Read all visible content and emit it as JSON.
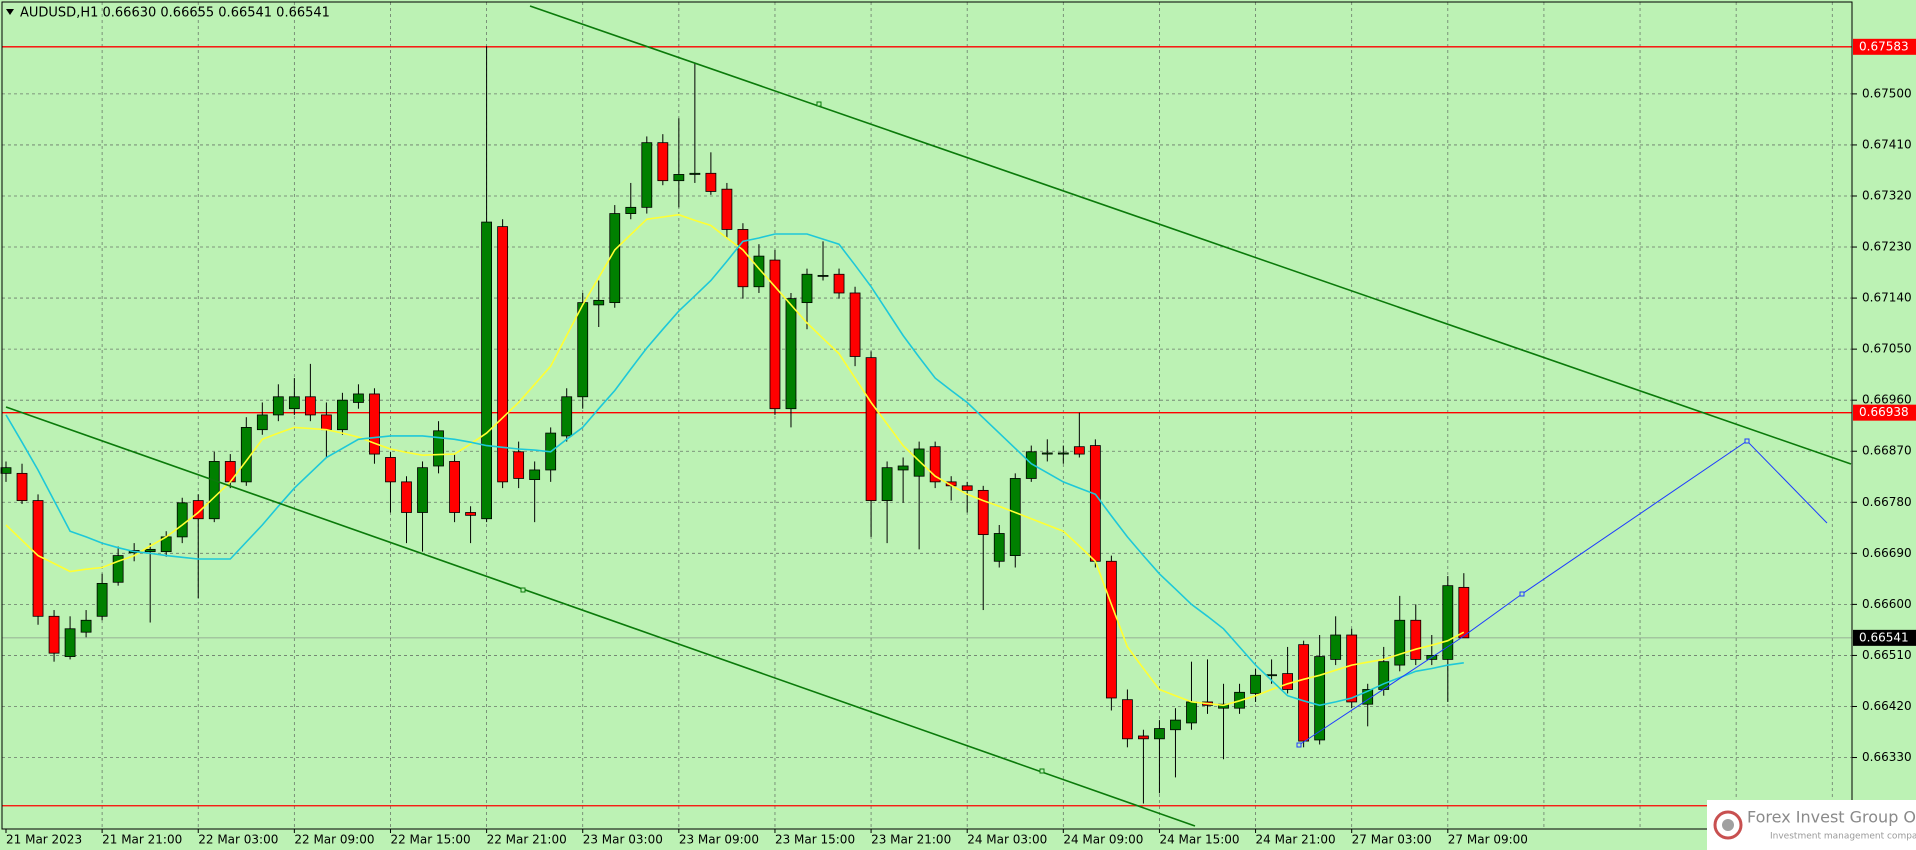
{
  "chart_data": {
    "type": "candlestick",
    "title": "AUDUSD,H1  0.66630 0.66655 0.66541 0.66541",
    "categories": [
      "21 Mar 2023",
      null,
      null,
      null,
      null,
      null,
      "21 Mar 21:00",
      null,
      null,
      null,
      null,
      null,
      "22 Mar 03:00",
      null,
      null,
      null,
      null,
      null,
      "22 Mar 09:00",
      null,
      null,
      null,
      null,
      null,
      "22 Mar 15:00",
      null,
      null,
      null,
      null,
      null,
      "22 Mar 21:00",
      null,
      null,
      null,
      null,
      null,
      "23 Mar 03:00",
      null,
      null,
      null,
      null,
      null,
      "23 Mar 09:00",
      null,
      null,
      null,
      null,
      null,
      "23 Mar 15:00",
      null,
      null,
      null,
      null,
      null,
      "23 Mar 21:00",
      null,
      null,
      null,
      null,
      null,
      "24 Mar 03:00",
      null,
      null,
      null,
      null,
      null,
      "24 Mar 09:00",
      null,
      null,
      null,
      null,
      null,
      "24 Mar 15:00",
      null,
      null,
      null,
      null,
      null,
      "24 Mar 21:00",
      null,
      null,
      null,
      null,
      null,
      "27 Mar 03:00",
      null,
      null,
      null,
      null,
      null,
      "27 Mar 09:00",
      null
    ],
    "open": [
      0.66831,
      0.66831,
      0.66783,
      0.66579,
      0.66508,
      0.66551,
      0.66579,
      0.66639,
      0.66691,
      0.66693,
      0.66693,
      0.66719,
      0.66783,
      0.66751,
      0.66852,
      0.66816,
      0.66908,
      0.66934,
      0.66945,
      0.66966,
      0.66934,
      0.66908,
      0.66956,
      0.66971,
      0.66859,
      0.66816,
      0.66762,
      0.66844,
      0.66852,
      0.66762,
      0.66751,
      0.67266,
      0.66869,
      0.6682,
      0.66837,
      0.66897,
      0.66966,
      0.67128,
      0.67132,
      0.67289,
      0.673,
      0.67414,
      0.67347,
      0.67358,
      0.6736,
      0.67332,
      0.67261,
      0.6716,
      0.67207,
      0.66945,
      0.67132,
      0.67179,
      0.67182,
      0.67149,
      0.67035,
      0.66783,
      0.66837,
      0.66826,
      0.66878,
      0.66816,
      0.66809,
      0.66801,
      0.66676,
      0.66686,
      0.66822,
      0.66865,
      0.66865,
      0.66878,
      0.6688,
      0.66676,
      0.66432,
      0.66368,
      0.66363,
      0.66379,
      0.66391,
      0.66428,
      0.66417,
      0.66417,
      0.66443,
      0.66475,
      0.66478,
      0.66529,
      0.66361,
      0.66503,
      0.66546,
      0.66424,
      0.6645,
      0.66493,
      0.66572,
      0.66503,
      0.66503,
      0.6663
    ],
    "high": [
      0.66852,
      0.66848,
      0.66794,
      0.6659,
      0.66579,
      0.6659,
      0.66654,
      0.66702,
      0.66708,
      0.66708,
      0.66729,
      0.66788,
      0.66794,
      0.66869,
      0.66865,
      0.6693,
      0.66956,
      0.66988,
      0.66999,
      0.67024,
      0.66956,
      0.66973,
      0.66988,
      0.66981,
      0.66869,
      0.66826,
      0.66852,
      0.66923,
      0.66865,
      0.66773,
      0.67584,
      0.67279,
      0.66887,
      0.66852,
      0.66912,
      0.66981,
      0.67149,
      0.67171,
      0.67304,
      0.67343,
      0.67425,
      0.67429,
      0.67457,
      0.67554,
      0.67397,
      0.67343,
      0.67272,
      0.67235,
      0.67225,
      0.67149,
      0.67192,
      0.6724,
      0.67192,
      0.6716,
      0.67046,
      0.66852,
      0.66859,
      0.66887,
      0.66887,
      0.66826,
      0.66816,
      0.66809,
      0.6674,
      0.66831,
      0.6688,
      0.66891,
      0.6688,
      0.66938,
      0.66891,
      0.66686,
      0.6645,
      0.66379,
      0.66396,
      0.66417,
      0.66499,
      0.66503,
      0.6646,
      0.6646,
      0.66486,
      0.66503,
      0.66525,
      0.66536,
      0.66546,
      0.66579,
      0.66557,
      0.6646,
      0.66525,
      0.66615,
      0.666,
      0.66546,
      0.6665,
      0.66655
    ],
    "low": [
      0.66816,
      0.66777,
      0.66564,
      0.66499,
      0.66503,
      0.66542,
      0.66572,
      0.66633,
      0.66676,
      0.66568,
      0.66684,
      0.66708,
      0.66611,
      0.66745,
      0.66805,
      0.66809,
      0.66899,
      0.66923,
      0.66934,
      0.66923,
      0.66859,
      0.66899,
      0.66945,
      0.66848,
      0.66762,
      0.66708,
      0.66693,
      0.66831,
      0.66745,
      0.66708,
      0.66745,
      0.66805,
      0.66805,
      0.66745,
      0.66816,
      0.66887,
      0.66945,
      0.67089,
      0.67123,
      0.67279,
      0.67289,
      0.67339,
      0.673,
      0.67343,
      0.67322,
      0.67246,
      0.67139,
      0.67149,
      0.66934,
      0.66912,
      0.67085,
      0.67171,
      0.67139,
      0.6702,
      0.66719,
      0.66708,
      0.66779,
      0.66697,
      0.66805,
      0.66783,
      0.66762,
      0.6659,
      0.66665,
      0.66665,
      0.66816,
      0.66852,
      0.66848,
      0.66859,
      0.66665,
      0.66413,
      0.66348,
      0.66249,
      0.66267,
      0.66295,
      0.66379,
      0.66407,
      0.66327,
      0.66407,
      0.66428,
      0.6646,
      0.66443,
      0.66348,
      0.66353,
      0.66493,
      0.66417,
      0.66385,
      0.66439,
      0.66482,
      0.66493,
      0.66493,
      0.66428,
      0.66541
    ],
    "close": [
      0.66841,
      0.66783,
      0.66579,
      0.66514,
      0.66557,
      0.66572,
      0.66637,
      0.66686,
      0.66695,
      0.66697,
      0.66719,
      0.66779,
      0.66751,
      0.66852,
      0.66816,
      0.66912,
      0.66934,
      0.66966,
      0.66966,
      0.66934,
      0.66908,
      0.6696,
      0.66971,
      0.66865,
      0.66816,
      0.66762,
      0.66841,
      0.66906,
      0.66762,
      0.66757,
      0.67274,
      0.66816,
      0.66822,
      0.66837,
      0.66902,
      0.66966,
      0.67132,
      0.67136,
      0.67289,
      0.673,
      0.67414,
      0.67347,
      0.67358,
      0.6736,
      0.67328,
      0.67261,
      0.6716,
      0.67214,
      0.66945,
      0.67139,
      0.67182,
      0.6718,
      0.67149,
      0.67037,
      0.66783,
      0.66841,
      0.66844,
      0.66874,
      0.66816,
      0.66809,
      0.66801,
      0.66723,
      0.66725,
      0.66822,
      0.66869,
      0.66867,
      0.66867,
      0.66865,
      0.66676,
      0.66435,
      0.66363,
      0.66363,
      0.66381,
      0.66396,
      0.66428,
      0.66422,
      0.66424,
      0.66445,
      0.66475,
      0.66476,
      0.6645,
      0.66359,
      0.66508,
      0.66546,
      0.66428,
      0.6645,
      0.66499,
      0.66572,
      0.66503,
      0.6651,
      0.66633,
      0.66541
    ],
    "up_color": "#008000",
    "down_color": "#ff0000",
    "overlays": [
      {
        "color": "#ffff33",
        "values": [
          0.6674,
          0.66713,
          0.66686,
          0.66672,
          0.66658,
          0.66662,
          0.66665,
          0.66676,
          0.66686,
          0.66703,
          0.66719,
          0.6674,
          0.66762,
          0.66789,
          0.66816,
          0.66853,
          0.66891,
          0.66902,
          0.66912,
          0.6691,
          0.66908,
          0.66902,
          0.66895,
          0.66884,
          0.66874,
          0.66868,
          0.66863,
          0.66864,
          0.66865,
          0.66883,
          0.66902,
          0.66929,
          0.66956,
          0.66988,
          0.6702,
          0.67074,
          0.67128,
          0.67176,
          0.67225,
          0.67252,
          0.67279,
          0.67283,
          0.67287,
          0.67277,
          0.67268,
          0.67246,
          0.67225,
          0.67192,
          0.6716,
          0.67128,
          0.67096,
          0.67069,
          0.67042,
          0.66999,
          0.66956,
          0.66918,
          0.6688,
          0.66853,
          0.66826,
          0.6681,
          0.66794,
          0.66783,
          0.66773,
          0.66762,
          0.66751,
          0.6674,
          0.66729,
          0.66703,
          0.66676,
          0.666,
          0.66525,
          0.66487,
          0.6645,
          0.66439,
          0.66428,
          0.66425,
          0.66422,
          0.6643,
          0.66439,
          0.6645,
          0.6646,
          0.66468,
          0.66475,
          0.66484,
          0.66493,
          0.66498,
          0.66503,
          0.66512,
          0.66521,
          0.66528,
          0.66536,
          0.66551
        ]
      },
      {
        "color": "#1ec8d8",
        "values": [
          0.66934,
          0.66886,
          0.66837,
          0.66783,
          0.66729,
          0.66719,
          0.66708,
          0.667,
          0.66693,
          0.6669,
          0.66686,
          0.66683,
          0.6668,
          0.6668,
          0.6668,
          0.6671,
          0.6674,
          0.66773,
          0.66805,
          0.66832,
          0.66859,
          0.66875,
          0.66891,
          0.66894,
          0.66897,
          0.66897,
          0.66897,
          0.66894,
          0.66891,
          0.66886,
          0.6688,
          0.66877,
          0.66874,
          0.66872,
          0.66869,
          0.66891,
          0.66912,
          0.66945,
          0.66977,
          0.67015,
          0.67052,
          0.67085,
          0.67117,
          0.67144,
          0.67171,
          0.67205,
          0.6724,
          0.67246,
          0.67253,
          0.67253,
          0.67253,
          0.67244,
          0.67235,
          0.67198,
          0.6716,
          0.67117,
          0.67074,
          0.67036,
          0.66999,
          0.66977,
          0.66956,
          0.66929,
          0.66902,
          0.66875,
          0.66848,
          0.66832,
          0.66816,
          0.66805,
          0.66794,
          0.66756,
          0.66719,
          0.66686,
          0.66654,
          0.66627,
          0.666,
          0.66579,
          0.66557,
          0.66525,
          0.66493,
          0.66466,
          0.66439,
          0.6643,
          0.66422,
          0.66428,
          0.66435,
          0.66447,
          0.6646,
          0.66471,
          0.66482,
          0.66487,
          0.66493,
          0.66497
        ]
      }
    ],
    "levels": [
      0.67583,
      0.66938
    ],
    "levels_unlabelled": [
      0.66245
    ],
    "level_color": "#ff0000",
    "ylim": [
      0.66204,
      0.67662
    ],
    "yticks": [
      {
        "value": 0.675,
        "label": "0.67500"
      },
      {
        "value": 0.6741,
        "label": "0.67410"
      },
      {
        "value": 0.6732,
        "label": "0.67320"
      },
      {
        "value": 0.6723,
        "label": "0.67230"
      },
      {
        "value": 0.6714,
        "label": "0.67140"
      },
      {
        "value": 0.6705,
        "label": "0.67050"
      },
      {
        "value": 0.6696,
        "label": "0.66960"
      },
      {
        "value": 0.6687,
        "label": "0.66870"
      },
      {
        "value": 0.6678,
        "label": "0.66780"
      },
      {
        "value": 0.6669,
        "label": "0.66690"
      },
      {
        "value": 0.666,
        "label": "0.66600"
      },
      {
        "value": 0.6651,
        "label": "0.66510"
      },
      {
        "value": 0.6642,
        "label": "0.66420"
      },
      {
        "value": 0.6633,
        "label": "0.66330"
      }
    ],
    "grid": true,
    "background": "#bcf2b4"
  },
  "logo": {
    "name": "Forex Invest Group OU",
    "tagline": "Investment management company"
  }
}
